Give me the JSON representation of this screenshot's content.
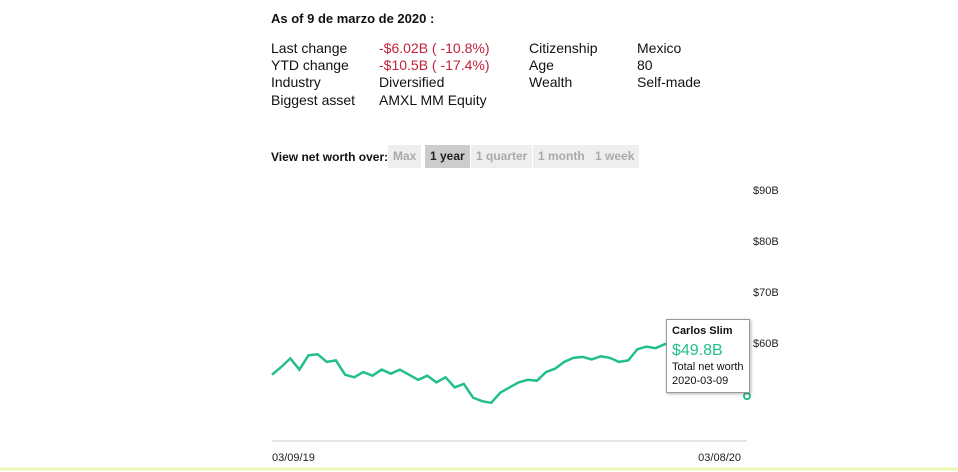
{
  "header": {
    "as_of": "As of 9 de marzo de 2020 :"
  },
  "stats": [
    {
      "label": "Last change",
      "value": "-$6.02B ( -10.8%)",
      "negative": true
    },
    {
      "label": "YTD change",
      "value": "-$10.5B ( -17.4%)",
      "negative": true
    },
    {
      "label": "Industry",
      "value": "Diversified"
    },
    {
      "label": "Biggest asset",
      "value": "AMXL MM Equity"
    },
    {
      "label": "Citizenship",
      "value": "Mexico"
    },
    {
      "label": "Age",
      "value": "80"
    },
    {
      "label": "Wealth",
      "value": "Self-made"
    }
  ],
  "range_selector": {
    "label": "View net worth over:",
    "options": [
      "Max",
      "1 year",
      "1 quarter",
      "1 month",
      "1 week"
    ],
    "active": 1
  },
  "chart_data": {
    "type": "line",
    "color": "#23bf8a",
    "categories": [
      "03/09/19",
      null,
      null,
      null,
      null,
      null,
      null,
      null,
      null,
      null,
      null,
      null,
      null,
      null,
      null,
      null,
      null,
      null,
      null,
      null,
      null,
      null,
      null,
      null,
      null,
      null,
      null,
      null,
      null,
      null,
      null,
      null,
      null,
      null,
      null,
      null,
      null,
      null,
      null,
      null,
      null,
      null,
      null,
      null,
      null,
      null,
      null,
      null,
      null,
      "03/08/20",
      null,
      null,
      null
    ],
    "values": [
      54.0,
      55.5,
      57.2,
      55.0,
      57.8,
      58.0,
      56.5,
      56.8,
      54.0,
      53.5,
      54.5,
      53.8,
      55.0,
      54.2,
      55.0,
      54.0,
      53.0,
      53.8,
      52.5,
      53.5,
      51.5,
      52.2,
      49.5,
      48.8,
      48.5,
      50.5,
      51.5,
      52.5,
      53.0,
      52.8,
      54.5,
      55.2,
      56.5,
      57.3,
      57.5,
      57.0,
      57.6,
      57.3,
      56.5,
      56.8,
      59.0,
      59.5,
      59.2,
      60.0,
      59.5,
      59.0,
      59.3,
      59.8,
      59.0,
      58.5,
      59.2,
      58.8,
      49.8
    ],
    "ylim": [
      41,
      92
    ],
    "yticks": [
      {
        "value": 60,
        "label": "$60B"
      },
      {
        "value": 70,
        "label": "$70B"
      },
      {
        "value": 80,
        "label": "$80B"
      },
      {
        "value": 90,
        "label": "$90B"
      }
    ],
    "tooltip": {
      "name": "Carlos Slim",
      "value": "$49.8B",
      "caption": "Total net worth",
      "date": "2020-03-09"
    }
  }
}
